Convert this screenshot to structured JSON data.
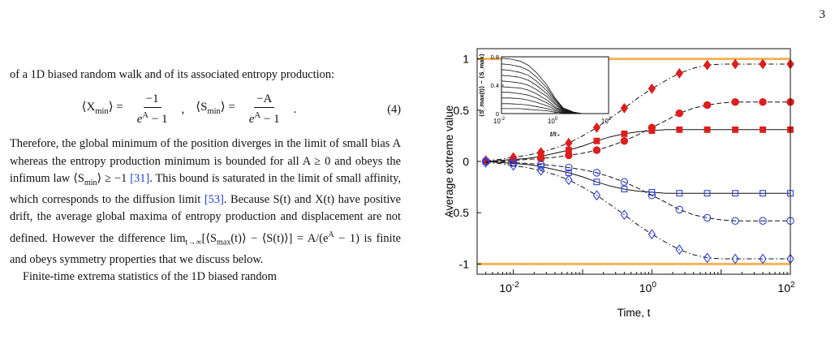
{
  "page_number": "3",
  "left_column": {
    "para1_a": "of a 1D biased random walk and of its associated entropy production:",
    "eq4_lhs1": "⟨X",
    "eq4_sub1": "min",
    "eq4_eq1": "⟩ =",
    "eq4_num1": "−1",
    "eq4_sep": ",",
    "eq4_lhs2": "⟨S",
    "eq4_sub2": "min",
    "eq4_eq2": "⟩ =",
    "eq4_num2": "−A",
    "eq4_den_base": "e",
    "eq4_den_sup": "A",
    "eq4_den_rest": " − 1",
    "eq4_dot": ".",
    "eq4_label": "(4)",
    "para2_a": "Therefore, the global minimum of the position diverges in the limit of small bias A whereas the entropy production minimum is bounded for all A ≥ 0 and obeys the infimum law ⟨S",
    "para2_sub": "min",
    "para2_b": "⟩ ≥ −1 ",
    "cite31": "[31]",
    "para2_c": ". This bound is saturated in the limit of small affinity, which corresponds to the diffusion limit ",
    "cite53": "[53]",
    "para2_d": ". Because S(t) and X(t) have positive drift, the average global maxima of entropy production and displacement are not defined. However the difference lim",
    "para2_limsub": "t→∞",
    "para2_e": "[⟨S",
    "para2_maxsub": "max",
    "para2_f": "(t)⟩ − ⟨S(t)⟩] = A/(e",
    "para2_sup": "A",
    "para2_g": " − 1) is finite and obeys symmetry properties that we discuss below.",
    "para3": "Finite-time extrema statistics of the 1D biased random"
  },
  "figure": {
    "ylabel": "Average extreme value",
    "xlabel": "Time, t",
    "y_ticks": [
      "1",
      "0.5",
      "0",
      "-0.5",
      "-1"
    ],
    "x_ticks": [
      {
        "base": "10",
        "exp": "-2"
      },
      {
        "base": "10",
        "exp": "0"
      },
      {
        "base": "10",
        "exp": "2"
      }
    ],
    "inset": {
      "ylabel": "⟨S_max(t)⟩ − ⟨S_max⟩",
      "xlabel": "t/τ₊",
      "y_ticks": [
        "0.8",
        "0.4",
        "0"
      ],
      "x_ticks": [
        {
          "base": "10",
          "exp": "-2"
        },
        {
          "base": "10",
          "exp": "0"
        },
        {
          "base": "10",
          "exp": "2"
        }
      ]
    }
  },
  "colors": {
    "red": "#dd1e1e",
    "blue": "#2f3fd8",
    "bound": "#f7b35a",
    "link": "#1f3fd0"
  },
  "chart_data": [
    {
      "type": "line",
      "x_scale": "log",
      "xlim": [
        0.003,
        100
      ],
      "ylim": [
        -1.1,
        1.1
      ],
      "ylabel": "Average extreme value",
      "xlabel": "Time, t",
      "bounds": [
        1,
        -1
      ],
      "x": [
        0.004,
        0.0063,
        0.01,
        0.016,
        0.025,
        0.04,
        0.063,
        0.1,
        0.16,
        0.25,
        0.4,
        0.63,
        1.0,
        1.6,
        2.5,
        4.0,
        6.3,
        10,
        16,
        25,
        40,
        63,
        100
      ],
      "series": [
        {
          "marker": "diamond",
          "color": "#dd1e1e",
          "filled": true,
          "values": [
            0.01,
            0.02,
            0.04,
            0.06,
            0.09,
            0.13,
            0.18,
            0.25,
            0.33,
            0.42,
            0.52,
            0.62,
            0.71,
            0.79,
            0.86,
            0.91,
            0.94,
            0.95,
            0.95,
            0.95,
            0.95,
            0.95,
            0.95
          ]
        },
        {
          "marker": "circle",
          "color": "#dd1e1e",
          "filled": true,
          "values": [
            0.0,
            0.0,
            0.01,
            0.02,
            0.03,
            0.04,
            0.06,
            0.08,
            0.11,
            0.15,
            0.2,
            0.26,
            0.33,
            0.4,
            0.47,
            0.52,
            0.55,
            0.57,
            0.58,
            0.58,
            0.58,
            0.58,
            0.58
          ]
        },
        {
          "marker": "square",
          "color": "#dd1e1e",
          "filled": true,
          "values": [
            0.0,
            0.01,
            0.02,
            0.03,
            0.05,
            0.08,
            0.11,
            0.15,
            0.2,
            0.24,
            0.27,
            0.29,
            0.3,
            0.31,
            0.31,
            0.31,
            0.31,
            0.31,
            0.31,
            0.31,
            0.31,
            0.31,
            0.31
          ]
        },
        {
          "marker": "square",
          "color": "#2f3fd8",
          "filled": false,
          "values": [
            0.0,
            -0.01,
            -0.02,
            -0.03,
            -0.05,
            -0.08,
            -0.11,
            -0.15,
            -0.2,
            -0.24,
            -0.27,
            -0.29,
            -0.3,
            -0.31,
            -0.31,
            -0.31,
            -0.31,
            -0.31,
            -0.31,
            -0.31,
            -0.31,
            -0.31,
            -0.31
          ]
        },
        {
          "marker": "circle",
          "color": "#2f3fd8",
          "filled": false,
          "values": [
            0.0,
            0.0,
            -0.01,
            -0.02,
            -0.03,
            -0.04,
            -0.06,
            -0.08,
            -0.11,
            -0.15,
            -0.2,
            -0.26,
            -0.33,
            -0.4,
            -0.47,
            -0.52,
            -0.55,
            -0.57,
            -0.58,
            -0.58,
            -0.58,
            -0.58,
            -0.58
          ]
        },
        {
          "marker": "diamond",
          "color": "#2f3fd8",
          "filled": false,
          "values": [
            -0.01,
            -0.02,
            -0.04,
            -0.06,
            -0.09,
            -0.13,
            -0.18,
            -0.25,
            -0.33,
            -0.42,
            -0.52,
            -0.62,
            -0.71,
            -0.79,
            -0.86,
            -0.91,
            -0.94,
            -0.95,
            -0.95,
            -0.95,
            -0.95,
            -0.95,
            -0.95
          ]
        }
      ]
    },
    {
      "type": "line",
      "x_scale": "log",
      "xlim": [
        0.01,
        100
      ],
      "ylim": [
        0,
        0.8
      ],
      "ylabel": "⟨S_max(t)⟩ − ⟨S_max⟩",
      "xlabel": "t/τ₊",
      "x": [
        0.01,
        0.02,
        0.05,
        0.1,
        0.2,
        0.5,
        1,
        2,
        5,
        10,
        20,
        50,
        100
      ],
      "series": [
        {
          "values": [
            0.78,
            0.77,
            0.74,
            0.68,
            0.58,
            0.4,
            0.22,
            0.08,
            0.02,
            0.0,
            0.0,
            0.0,
            0.0
          ]
        },
        {
          "values": [
            0.7,
            0.69,
            0.66,
            0.61,
            0.52,
            0.36,
            0.2,
            0.07,
            0.02,
            0.0,
            0.0,
            0.0,
            0.0
          ]
        },
        {
          "values": [
            0.62,
            0.61,
            0.58,
            0.54,
            0.46,
            0.32,
            0.18,
            0.06,
            0.01,
            0.0,
            0.0,
            0.0,
            0.0
          ]
        },
        {
          "values": [
            0.54,
            0.53,
            0.51,
            0.47,
            0.4,
            0.28,
            0.15,
            0.05,
            0.01,
            0.0,
            0.0,
            0.0,
            0.0
          ]
        },
        {
          "values": [
            0.46,
            0.45,
            0.43,
            0.4,
            0.34,
            0.24,
            0.13,
            0.04,
            0.01,
            0.0,
            0.0,
            0.0,
            0.0
          ]
        },
        {
          "values": [
            0.38,
            0.37,
            0.36,
            0.33,
            0.28,
            0.19,
            0.1,
            0.03,
            0.01,
            0.0,
            0.0,
            0.0,
            0.0
          ]
        },
        {
          "values": [
            0.3,
            0.3,
            0.28,
            0.26,
            0.22,
            0.15,
            0.08,
            0.03,
            0.01,
            0.0,
            0.0,
            0.0,
            0.0
          ]
        },
        {
          "values": [
            0.22,
            0.22,
            0.21,
            0.19,
            0.16,
            0.11,
            0.06,
            0.02,
            0.0,
            0.0,
            0.0,
            0.0,
            0.0
          ]
        },
        {
          "values": [
            0.14,
            0.14,
            0.13,
            0.12,
            0.1,
            0.07,
            0.04,
            0.01,
            0.0,
            0.0,
            0.0,
            0.0,
            0.0
          ]
        },
        {
          "values": [
            0.07,
            0.07,
            0.07,
            0.06,
            0.05,
            0.04,
            0.02,
            0.01,
            0.0,
            0.0,
            0.0,
            0.0,
            0.0
          ]
        }
      ]
    }
  ]
}
